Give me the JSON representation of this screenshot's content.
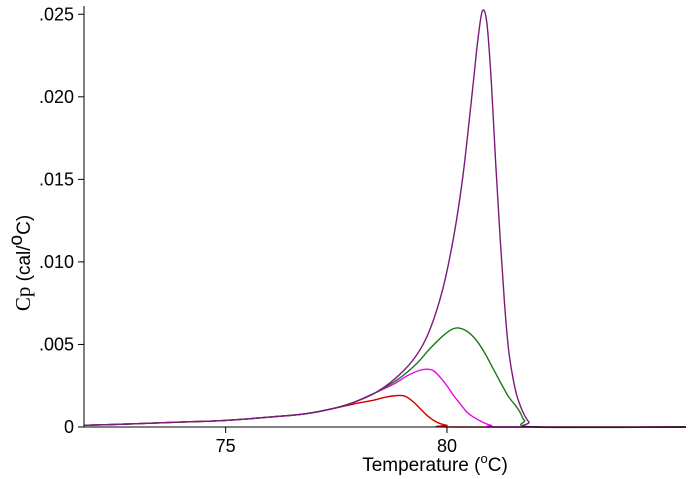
{
  "chart_data": {
    "type": "line",
    "xlabel_main": "Temperature (",
    "xlabel_sup": "o",
    "xlabel_end": "C)",
    "ylabel_sym": "Cp",
    "ylabel_main": " (cal/",
    "ylabel_sup": "o",
    "ylabel_end": "C)",
    "xlim": [
      71.8,
      85.4
    ],
    "ylim": [
      0,
      0.0255
    ],
    "xticks": [
      {
        "value": 75,
        "label": "75"
      },
      {
        "value": 80,
        "label": "80"
      }
    ],
    "yticks": [
      {
        "value": 0,
        "label": "0"
      },
      {
        "value": 0.005,
        "label": ".005"
      },
      {
        "value": 0.01,
        "label": ".010"
      },
      {
        "value": 0.015,
        "label": ".015"
      },
      {
        "value": 0.02,
        "label": ".020"
      },
      {
        "value": 0.025,
        "label": ".025"
      }
    ],
    "grid": false,
    "series": [
      {
        "color": "#d40000",
        "x": [
          71.8,
          73.0,
          74.0,
          75.0,
          76.0,
          76.8,
          77.4,
          77.9,
          78.3,
          78.6,
          78.85,
          79.0,
          79.1,
          79.25,
          79.4,
          79.55,
          79.7,
          79.85,
          80.0,
          80.2,
          85.4
        ],
        "y": [
          0.0001,
          0.0002,
          0.0003,
          0.0004,
          0.0006,
          0.0008,
          0.0011,
          0.0014,
          0.0016,
          0.0018,
          0.0019,
          0.0019,
          0.0018,
          0.0015,
          0.0011,
          0.0007,
          0.0004,
          0.0002,
          0.0001,
          0.0,
          0.0
        ]
      },
      {
        "color": "#ee00ee",
        "x": [
          71.8,
          73.0,
          74.0,
          75.0,
          76.0,
          76.8,
          77.4,
          77.9,
          78.4,
          78.8,
          79.1,
          79.35,
          79.55,
          79.7,
          79.85,
          80.0,
          80.15,
          80.3,
          80.45,
          80.6,
          80.8,
          81.0,
          81.3,
          85.4
        ],
        "y": [
          0.0001,
          0.0002,
          0.0003,
          0.0004,
          0.0006,
          0.0008,
          0.0011,
          0.0015,
          0.0021,
          0.0026,
          0.0031,
          0.0034,
          0.0035,
          0.0034,
          0.003,
          0.0025,
          0.0019,
          0.0014,
          0.0009,
          0.0006,
          0.0003,
          0.0001,
          0.0,
          0.0
        ]
      },
      {
        "color": "#1a7a1a",
        "x": [
          71.8,
          73.0,
          74.0,
          75.0,
          76.0,
          76.8,
          77.4,
          77.9,
          78.4,
          78.9,
          79.3,
          79.6,
          79.9,
          80.1,
          80.25,
          80.45,
          80.65,
          80.85,
          81.05,
          81.25,
          81.4,
          81.55,
          81.65,
          81.75,
          82.0,
          85.4
        ],
        "y": [
          0.0001,
          0.0002,
          0.0003,
          0.0004,
          0.0006,
          0.0008,
          0.0011,
          0.0015,
          0.0021,
          0.0029,
          0.0038,
          0.0047,
          0.0055,
          0.0059,
          0.006,
          0.0058,
          0.0053,
          0.0045,
          0.0035,
          0.0025,
          0.0018,
          0.0013,
          0.0009,
          0.0004,
          0.0,
          0.0
        ]
      },
      {
        "color": "#7a1a7a",
        "x": [
          71.8,
          73.0,
          74.0,
          75.0,
          76.0,
          76.8,
          77.4,
          77.9,
          78.4,
          78.9,
          79.3,
          79.6,
          79.9,
          80.15,
          80.35,
          80.5,
          80.6,
          80.7,
          80.8,
          80.9,
          81.0,
          81.1,
          81.2,
          81.3,
          81.4,
          81.55,
          81.7,
          81.85,
          82.0,
          85.4
        ],
        "y": [
          0.0001,
          0.0002,
          0.0003,
          0.0004,
          0.0006,
          0.0008,
          0.0011,
          0.0015,
          0.0021,
          0.0031,
          0.0043,
          0.0058,
          0.0083,
          0.0115,
          0.015,
          0.0185,
          0.021,
          0.0235,
          0.0252,
          0.0245,
          0.021,
          0.016,
          0.0115,
          0.0075,
          0.0045,
          0.0022,
          0.001,
          0.0003,
          0.0,
          0.0
        ]
      }
    ]
  }
}
